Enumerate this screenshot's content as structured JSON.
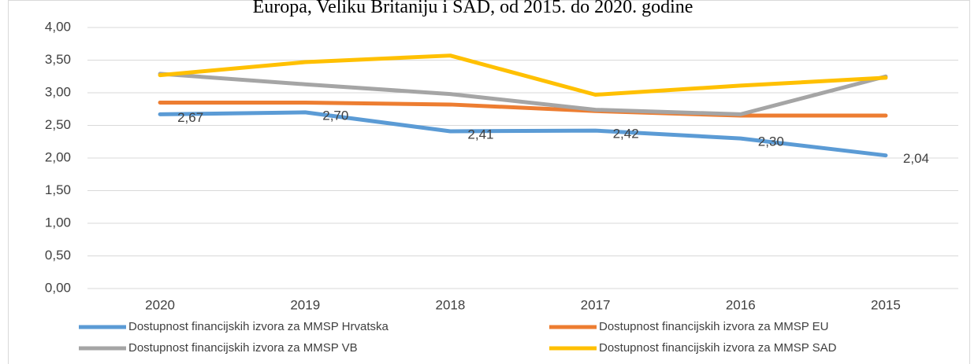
{
  "chart_data": {
    "type": "line",
    "title": "Europa, Veliku Britaniju i SAD, od 2015. do 2020. godine",
    "categories": [
      "2020",
      "2019",
      "2018",
      "2017",
      "2016",
      "2015"
    ],
    "series": [
      {
        "name": "Dostupnost financijskih izvora za MMSP Hrvatska",
        "color": "#5b9bd5",
        "values": [
          2.67,
          2.7,
          2.41,
          2.42,
          2.3,
          2.04
        ],
        "value_labels": [
          "2,67",
          "2,70",
          "2,41",
          "2,42",
          "2,30",
          "2,04"
        ]
      },
      {
        "name": "Dostupnost financijskih izvora za MMSP EU",
        "color": "#ed7d31",
        "values": [
          2.85,
          2.85,
          2.82,
          2.72,
          2.65,
          2.65
        ]
      },
      {
        "name": "Dostupnost financijskih izvora za MMSP VB",
        "color": "#a5a5a5",
        "values": [
          3.29,
          3.13,
          2.98,
          2.74,
          2.67,
          3.25
        ]
      },
      {
        "name": "Dostupnost financijskih izvora za MMSP SAD",
        "color": "#ffc000",
        "values": [
          3.27,
          3.47,
          3.57,
          2.97,
          3.11,
          3.23
        ]
      }
    ],
    "ylim": [
      0,
      4
    ],
    "yticks": [
      {
        "value": 0,
        "label": "0,00"
      },
      {
        "value": 0.5,
        "label": "0,50"
      },
      {
        "value": 1,
        "label": "1,00"
      },
      {
        "value": 1.5,
        "label": "1,50"
      },
      {
        "value": 2,
        "label": "2,00"
      },
      {
        "value": 2.5,
        "label": "2,50"
      },
      {
        "value": 3,
        "label": "3,00"
      },
      {
        "value": 3.5,
        "label": "3,50"
      },
      {
        "value": 4,
        "label": "4,00"
      }
    ],
    "grid": true,
    "legend": "bottom"
  }
}
